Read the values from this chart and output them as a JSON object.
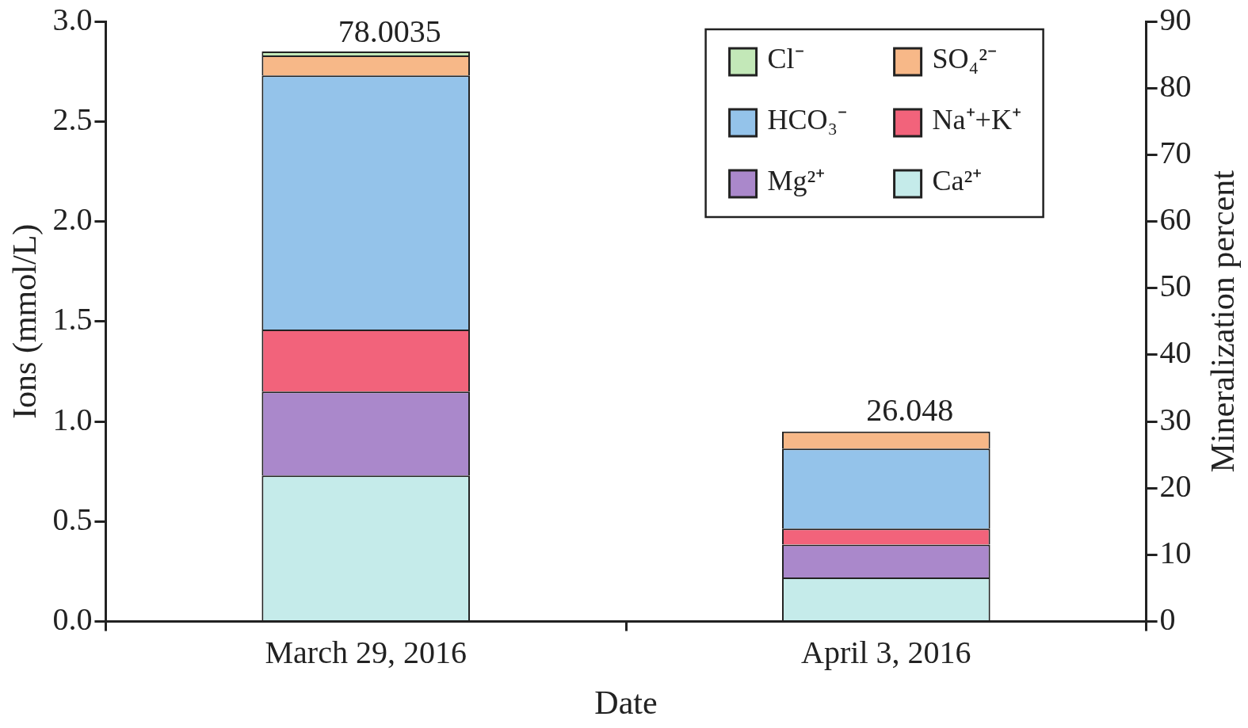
{
  "chart_data": {
    "type": "bar",
    "stacked": true,
    "xlabel": "Date",
    "ylabel": "Ions (mmol/L)",
    "y2label": "Mineralization percent",
    "categories": [
      "March 29, 2016",
      "April 3, 2016"
    ],
    "series": [
      {
        "name": "Ca²⁺",
        "color": "#c5ebea",
        "values": [
          0.73,
          0.22
        ]
      },
      {
        "name": "Mg²⁺",
        "color": "#aa88cb",
        "values": [
          0.42,
          0.165
        ]
      },
      {
        "name": "Na⁺+K⁺",
        "color": "#f2637b",
        "values": [
          0.31,
          0.08
        ]
      },
      {
        "name": "HCO₃⁻",
        "color": "#94c3ea",
        "values": [
          1.27,
          0.4
        ]
      },
      {
        "name": "SO₄²⁻",
        "color": "#f7b888",
        "values": [
          0.1,
          0.085
        ]
      },
      {
        "name": "Cl⁻",
        "color": "#c3e8b8",
        "values": [
          0.02,
          null
        ]
      }
    ],
    "annotations": [
      {
        "text": "78.0035",
        "x": "March 29, 2016",
        "y": 2.85
      },
      {
        "text": "26.048",
        "x": "April 3, 2016",
        "y": 0.96
      }
    ],
    "ylim": [
      0,
      3
    ],
    "yticks": [
      {
        "value": 0,
        "label": "0.0"
      },
      {
        "value": 0.5,
        "label": "0.5"
      },
      {
        "value": 1,
        "label": "1.0"
      },
      {
        "value": 1.5,
        "label": "1.5"
      },
      {
        "value": 2,
        "label": "2.0"
      },
      {
        "value": 2.5,
        "label": "2.5"
      },
      {
        "value": 3,
        "label": "3.0"
      }
    ],
    "y2lim": [
      0,
      90
    ],
    "y2ticks": [
      0,
      10,
      20,
      30,
      40,
      50,
      60,
      70,
      80,
      90
    ],
    "grid": false,
    "legend": "top right"
  }
}
